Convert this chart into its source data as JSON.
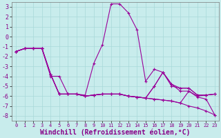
{
  "background_color": "#c8ecec",
  "grid_color": "#a8d8d8",
  "line_color": "#990099",
  "xlim": [
    -0.5,
    23.5
  ],
  "ylim": [
    -8.5,
    3.5
  ],
  "xticks": [
    0,
    1,
    2,
    3,
    4,
    5,
    6,
    7,
    8,
    9,
    10,
    11,
    12,
    13,
    14,
    15,
    16,
    17,
    18,
    19,
    20,
    21,
    22,
    23
  ],
  "yticks": [
    -8,
    -7,
    -6,
    -5,
    -4,
    -3,
    -2,
    -1,
    0,
    1,
    2,
    3
  ],
  "xlabel": "Windchill (Refroidissement éolien,°C)",
  "series": [
    [
      -1.5,
      -1.2,
      -1.2,
      -1.2,
      -3.8,
      -5.8,
      -5.8,
      -5.8,
      -6.0,
      -5.9,
      -5.8,
      -5.8,
      -5.8,
      -6.0,
      -6.1,
      -6.2,
      -6.3,
      -6.4,
      -6.5,
      -6.7,
      -7.0,
      -7.2,
      -7.5,
      -7.9
    ],
    [
      -1.5,
      -1.2,
      -1.2,
      -1.2,
      -4.0,
      -4.0,
      -5.8,
      -5.8,
      -5.9,
      -2.7,
      -0.8,
      3.3,
      3.3,
      2.4,
      0.7,
      -4.5,
      -3.3,
      -3.6,
      -5.0,
      -5.2,
      -5.2,
      -5.9,
      -5.9,
      -5.8
    ],
    [
      -1.5,
      -1.2,
      -1.2,
      -1.2,
      -3.8,
      -5.8,
      -5.8,
      -5.8,
      -6.0,
      -5.9,
      -5.8,
      -5.8,
      -5.8,
      -6.0,
      -6.1,
      -6.2,
      -5.0,
      -3.6,
      -4.8,
      -5.2,
      -5.2,
      -5.9,
      -5.9,
      -5.8
    ],
    [
      -1.5,
      -1.2,
      -1.2,
      -1.2,
      -3.8,
      -5.8,
      -5.8,
      -5.8,
      -6.0,
      -5.9,
      -5.8,
      -5.8,
      -5.8,
      -6.0,
      -6.1,
      -6.2,
      -5.0,
      -3.6,
      -4.8,
      -5.5,
      -5.5,
      -6.1,
      -6.3,
      -7.9
    ],
    [
      -1.5,
      -1.2,
      -1.2,
      -1.2,
      -3.8,
      -5.8,
      -5.8,
      -5.8,
      -6.0,
      -5.9,
      -5.8,
      -5.8,
      -5.8,
      -6.0,
      -6.1,
      -6.2,
      -6.3,
      -6.4,
      -6.5,
      -6.7,
      -5.5,
      -6.0,
      -5.9,
      -5.8
    ]
  ],
  "marker": "+",
  "markersize": 3,
  "linewidth": 0.8
}
